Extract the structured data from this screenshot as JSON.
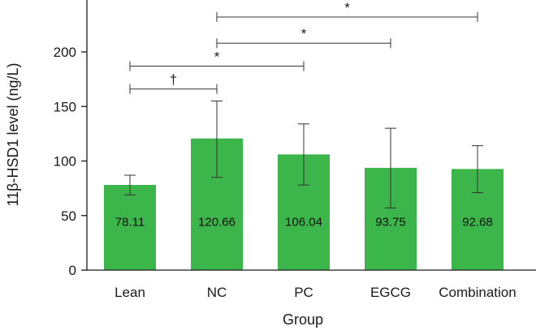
{
  "chart_data": {
    "type": "bar",
    "title": "",
    "xlabel": "Group",
    "ylabel": "11β-HSD1 level (ng/L)",
    "ylim": [
      0,
      240
    ],
    "yticks": [
      0,
      50,
      100,
      150,
      200
    ],
    "categories": [
      "Lean",
      "NC",
      "PC",
      "EGCG",
      "Combination"
    ],
    "values": [
      78.11,
      120.66,
      106.04,
      93.75,
      92.68
    ],
    "value_labels": [
      "78.11",
      "120.66",
      "106.04",
      "93.75",
      "92.68"
    ],
    "error_bars": [
      {
        "low": 69,
        "high": 87
      },
      {
        "low": 85,
        "high": 155
      },
      {
        "low": 78,
        "high": 134
      },
      {
        "low": 57,
        "high": 130
      },
      {
        "low": 71,
        "high": 114
      }
    ],
    "bar_color": "#3cb54a",
    "significance": [
      {
        "from": 0,
        "to": 1,
        "label": "†",
        "y": 166
      },
      {
        "from": 0,
        "to": 2,
        "label": "*",
        "y": 187
      },
      {
        "from": 1,
        "to": 3,
        "label": "*",
        "y": 208
      },
      {
        "from": 1,
        "to": 4,
        "label": "*",
        "y": 232
      }
    ]
  }
}
